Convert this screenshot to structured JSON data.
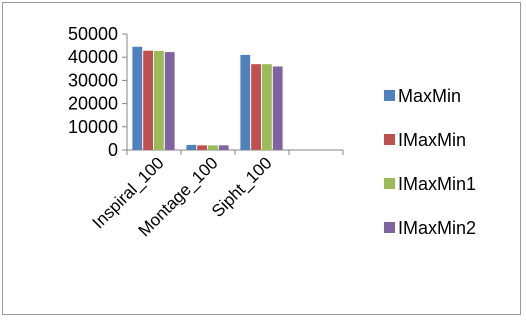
{
  "chart_data": {
    "type": "bar",
    "title": "",
    "xlabel": "",
    "ylabel": "",
    "categories": [
      "Inspiral_100",
      "Montage_100",
      "Sipht_100",
      ""
    ],
    "ylim": [
      0,
      50000
    ],
    "yticks": [
      0,
      10000,
      20000,
      30000,
      40000,
      50000
    ],
    "legend_position": "right",
    "series": [
      {
        "name": "MaxMin",
        "color": "#4F81BD",
        "values": [
          44500,
          2200,
          41000,
          null
        ]
      },
      {
        "name": "IMaxMin",
        "color": "#C0504D",
        "values": [
          42800,
          2000,
          37000,
          null
        ]
      },
      {
        "name": "IMaxMin1",
        "color": "#9BBB59",
        "values": [
          42700,
          2000,
          37000,
          null
        ]
      },
      {
        "name": "IMaxMin2",
        "color": "#8064A2",
        "values": [
          42200,
          2000,
          36000,
          null
        ]
      }
    ]
  }
}
